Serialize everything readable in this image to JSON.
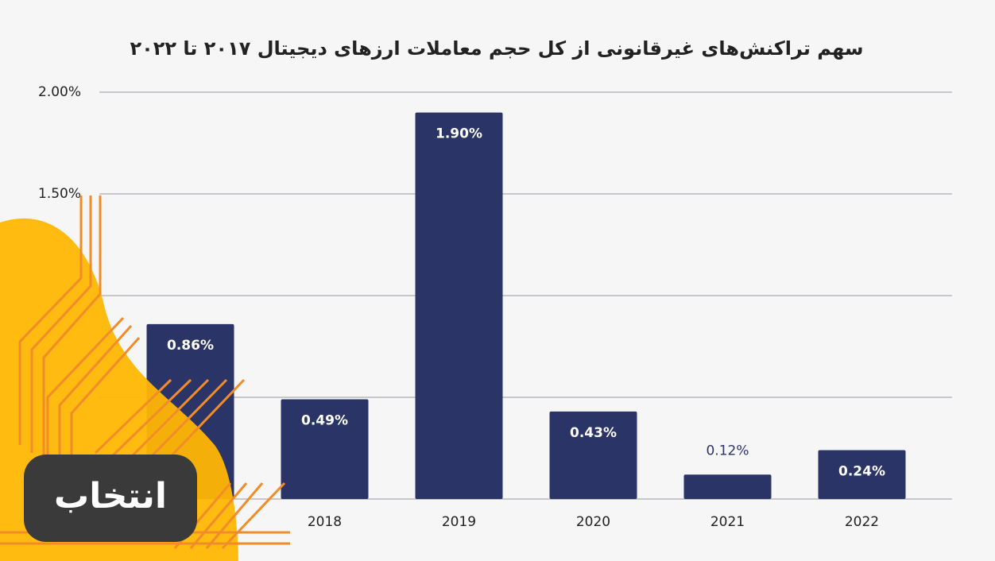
{
  "chart_data": {
    "type": "bar",
    "title": "سهم تراکنش‌های غیرقانونی از کل حجم معاملات ارزهای دیجیتال ۲۰۱۷ تا ۲۰۲۲",
    "categories": [
      null,
      "2018",
      "2019",
      "2020",
      "2021",
      "2022"
    ],
    "values": [
      0.86,
      0.49,
      1.9,
      0.43,
      0.12,
      0.24
    ],
    "value_labels": [
      "0.86%",
      "0.49%",
      "1.90%",
      "0.43%",
      "0.12%",
      "0.24%"
    ],
    "color": "#2b3467",
    "ylim": [
      0,
      2
    ],
    "yticks": [
      {
        "value": 0,
        "label": null
      },
      {
        "value": 0.5,
        "label": null
      },
      {
        "value": 1,
        "label": null
      },
      {
        "value": 1.5,
        "label": "1.50%"
      },
      {
        "value": 2,
        "label": "2.00%"
      }
    ],
    "grid": true
  },
  "logo": "انتخاب"
}
